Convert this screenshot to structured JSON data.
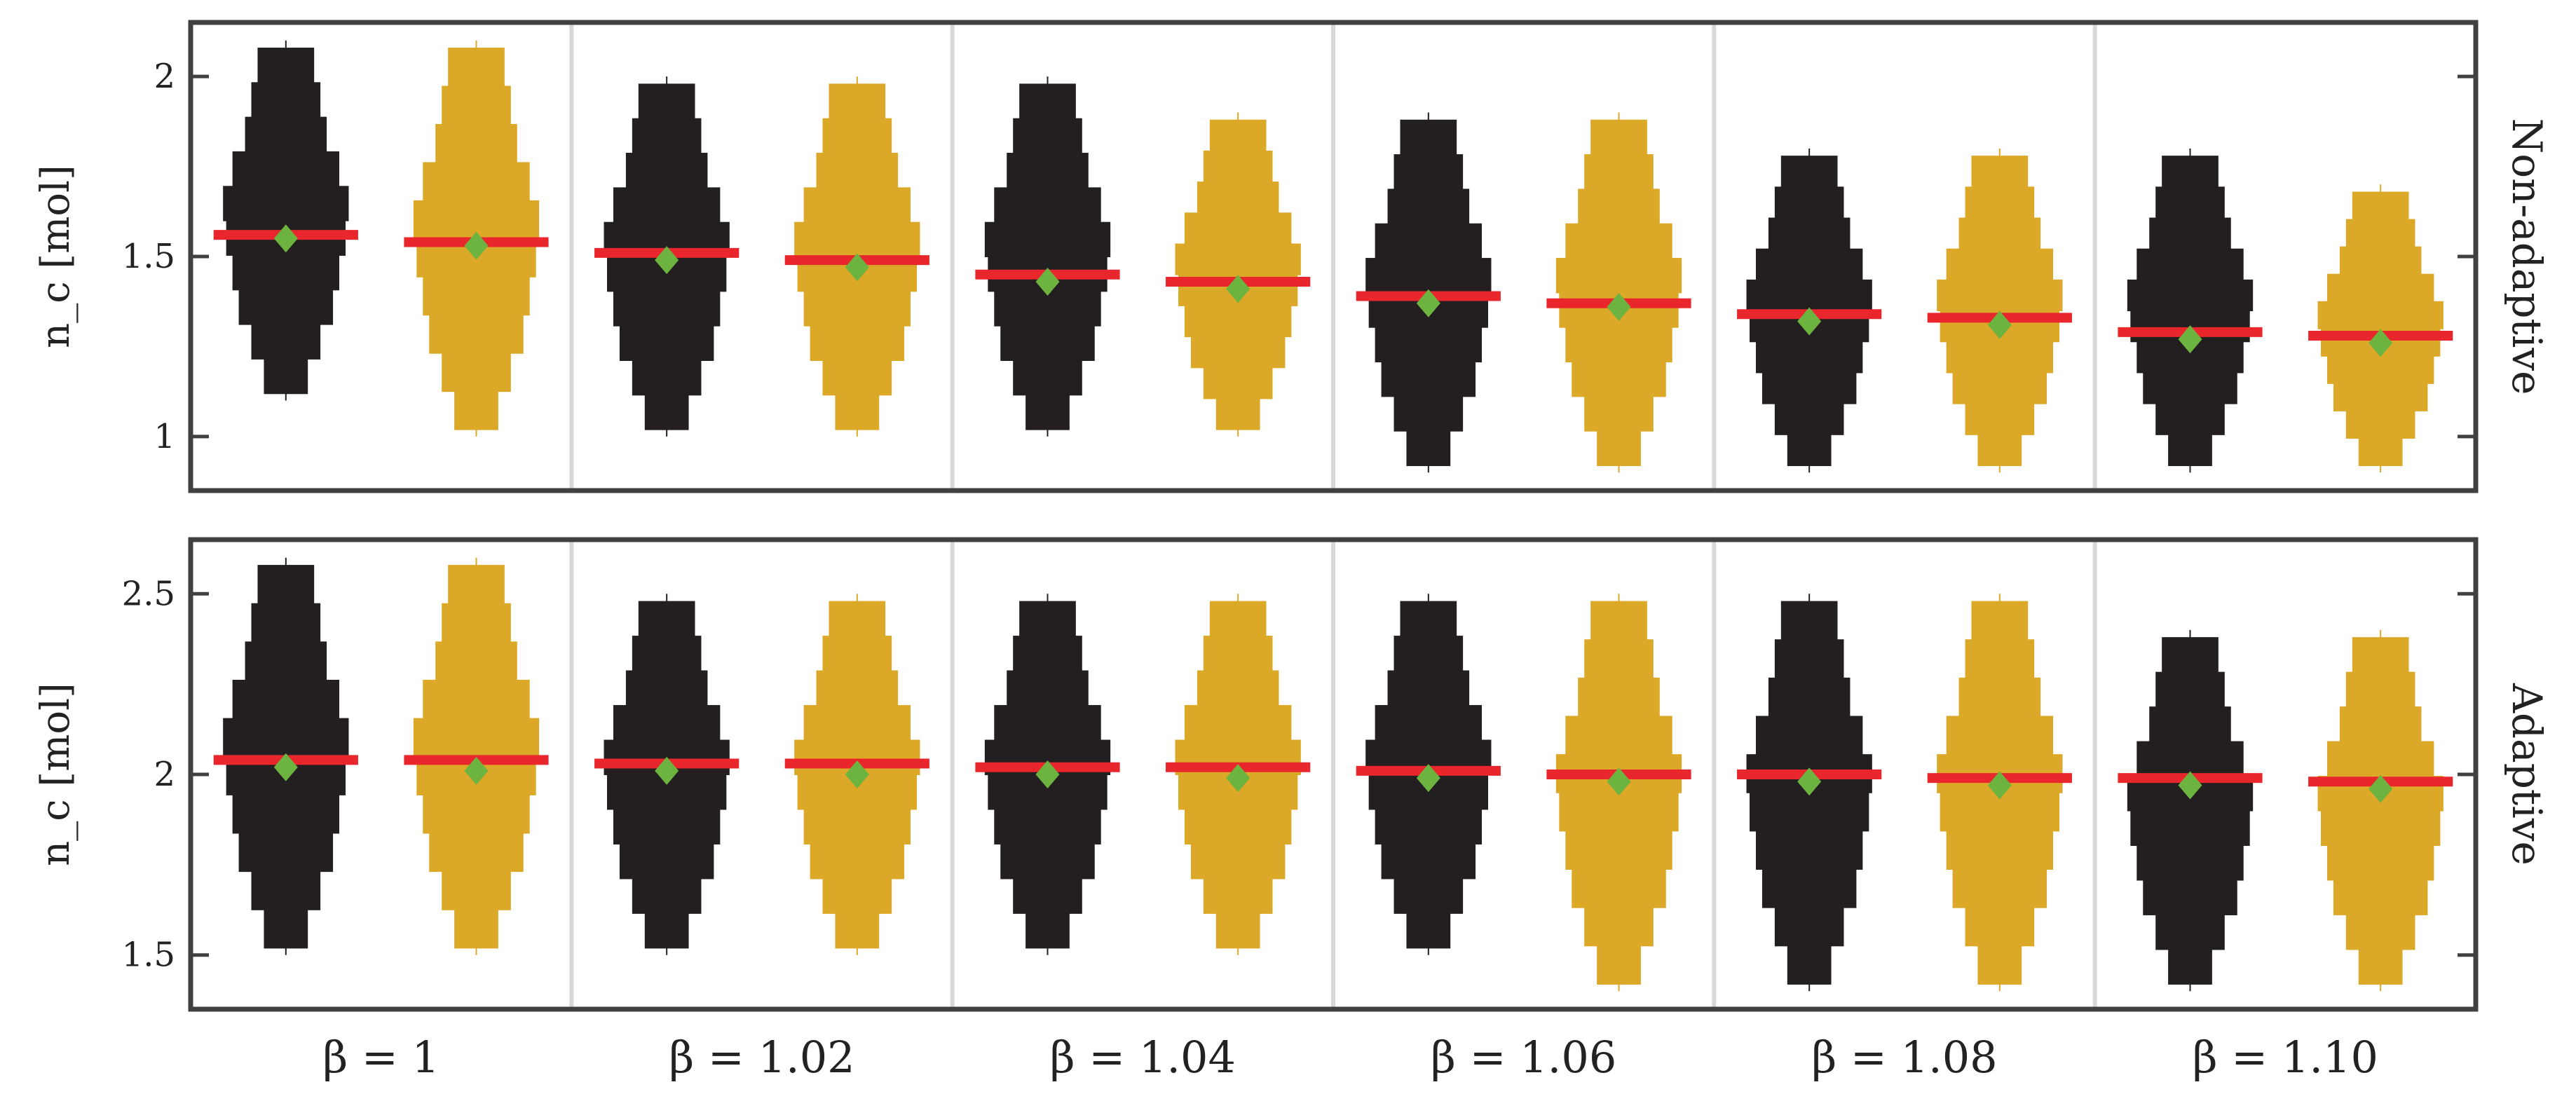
{
  "chart_data": {
    "type": "violin",
    "colors": {
      "series_a": "#231f20",
      "series_b": "#dba827",
      "mean_line": "#e8262b",
      "median_marker": "#6cb33f",
      "frame": "#404040",
      "separator": "#d8d8d8"
    },
    "columns": [
      "β = 1",
      "β = 1.02",
      "β = 1.04",
      "β = 1.06",
      "β = 1.08",
      "β = 1.10"
    ],
    "rows": [
      {
        "label": "Non-adaptive",
        "ylabel": "n_c [mol]",
        "ylim": [
          0.85,
          2.15
        ],
        "yticks": [
          1,
          1.5,
          2
        ],
        "ytick_labels": [
          "1",
          "1.5",
          "2"
        ],
        "groups": [
          {
            "series": "black",
            "mean": 1.56,
            "median": 1.55,
            "whisker": [
              1.1,
              2.1
            ]
          },
          {
            "series": "gold",
            "mean": 1.54,
            "median": 1.53,
            "whisker": [
              1.0,
              2.1
            ]
          },
          {
            "series": "black",
            "mean": 1.51,
            "median": 1.49,
            "whisker": [
              1.0,
              2.0
            ]
          },
          {
            "series": "gold",
            "mean": 1.49,
            "median": 1.47,
            "whisker": [
              1.0,
              2.0
            ]
          },
          {
            "series": "black",
            "mean": 1.45,
            "median": 1.43,
            "whisker": [
              1.0,
              2.0
            ]
          },
          {
            "series": "gold",
            "mean": 1.43,
            "median": 1.41,
            "whisker": [
              1.0,
              1.9
            ]
          },
          {
            "series": "black",
            "mean": 1.39,
            "median": 1.37,
            "whisker": [
              0.9,
              1.9
            ]
          },
          {
            "series": "gold",
            "mean": 1.37,
            "median": 1.36,
            "whisker": [
              0.9,
              1.9
            ]
          },
          {
            "series": "black",
            "mean": 1.34,
            "median": 1.32,
            "whisker": [
              0.9,
              1.8
            ]
          },
          {
            "series": "gold",
            "mean": 1.33,
            "median": 1.31,
            "whisker": [
              0.9,
              1.8
            ]
          },
          {
            "series": "black",
            "mean": 1.29,
            "median": 1.27,
            "whisker": [
              0.9,
              1.8
            ]
          },
          {
            "series": "gold",
            "mean": 1.28,
            "median": 1.26,
            "whisker": [
              0.9,
              1.7
            ]
          }
        ]
      },
      {
        "label": "Adaptive",
        "ylabel": "n_c [mol]",
        "ylim": [
          1.35,
          2.65
        ],
        "yticks": [
          1.5,
          2,
          2.5
        ],
        "ytick_labels": [
          "1.5",
          "2",
          "2.5"
        ],
        "groups": [
          {
            "series": "black",
            "mean": 2.04,
            "median": 2.02,
            "whisker": [
              1.5,
              2.6
            ]
          },
          {
            "series": "gold",
            "mean": 2.04,
            "median": 2.01,
            "whisker": [
              1.5,
              2.6
            ]
          },
          {
            "series": "black",
            "mean": 2.03,
            "median": 2.01,
            "whisker": [
              1.5,
              2.5
            ]
          },
          {
            "series": "gold",
            "mean": 2.03,
            "median": 2.0,
            "whisker": [
              1.5,
              2.5
            ]
          },
          {
            "series": "black",
            "mean": 2.02,
            "median": 2.0,
            "whisker": [
              1.5,
              2.5
            ]
          },
          {
            "series": "gold",
            "mean": 2.02,
            "median": 1.99,
            "whisker": [
              1.5,
              2.5
            ]
          },
          {
            "series": "black",
            "mean": 2.01,
            "median": 1.99,
            "whisker": [
              1.5,
              2.5
            ]
          },
          {
            "series": "gold",
            "mean": 2.0,
            "median": 1.98,
            "whisker": [
              1.4,
              2.5
            ]
          },
          {
            "series": "black",
            "mean": 2.0,
            "median": 1.98,
            "whisker": [
              1.4,
              2.5
            ]
          },
          {
            "series": "gold",
            "mean": 1.99,
            "median": 1.97,
            "whisker": [
              1.4,
              2.5
            ]
          },
          {
            "series": "black",
            "mean": 1.99,
            "median": 1.97,
            "whisker": [
              1.4,
              2.4
            ]
          },
          {
            "series": "gold",
            "mean": 1.98,
            "median": 1.96,
            "whisker": [
              1.4,
              2.4
            ]
          }
        ]
      }
    ]
  }
}
